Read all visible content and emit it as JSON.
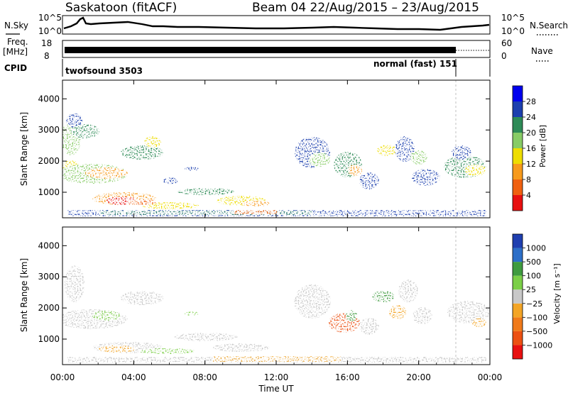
{
  "header": {
    "station": "Saskatoon (fitACF)",
    "beam_date": "Beam 04 22/Aug/2015 – 23/Aug/2015"
  },
  "strips": {
    "nsky_label": "N.Sky",
    "nsky_ticks": [
      "10^5",
      "10^0"
    ],
    "nsky_right_ticks": [
      "10^5",
      "10^0"
    ],
    "nsearch_label": "N.Search",
    "freq_label": "Freq.",
    "freq_unit": "[MHz]",
    "freq_ticks": [
      "18",
      "8"
    ],
    "nave_label": "Nave",
    "nave_ticks": [
      "60",
      "0"
    ],
    "cpid_label": "CPID",
    "cpid_modes": [
      "twofsound 3503",
      "normal (fast) 151"
    ]
  },
  "chart_data": [
    {
      "type": "heatmap",
      "name": "power-panel",
      "ylabel": "Slant Range [km]",
      "ylim": [
        180,
        4600
      ],
      "y_ticks": [
        1000,
        2000,
        3000,
        4000
      ],
      "y_tick_labels": [
        "1000",
        "2000",
        "3000",
        "4000"
      ],
      "colorbar_label": "Power [dB]",
      "colorbar_ticks": [
        "28",
        "24",
        "20",
        "16",
        "12",
        "8",
        "4"
      ],
      "colorbar_colors": [
        "#0000ee",
        "#1c3fae",
        "#2e8b57",
        "#88cc66",
        "#eedd00",
        "#f79a1c",
        "#f06010",
        "#e81010"
      ]
    },
    {
      "type": "heatmap",
      "name": "velocity-panel",
      "ylabel": "Slant Range [km]",
      "ylim": [
        180,
        4600
      ],
      "y_ticks": [
        1000,
        2000,
        3000,
        4000
      ],
      "y_tick_labels": [
        "1000",
        "2000",
        "3000",
        "4000"
      ],
      "xlabel": "Time UT",
      "x_tick_labels": [
        "00:00",
        "04:00",
        "08:00",
        "12:00",
        "16:00",
        "20:00",
        "00:00"
      ],
      "colorbar_label": "Velocity [m s⁻¹]",
      "colorbar_ticks": [
        "1000",
        "500",
        "100",
        "25",
        "−25",
        "−100",
        "−500",
        "−1000"
      ],
      "colorbar_colors": [
        "#1f3fb0",
        "#2d6fc8",
        "#3f9b3f",
        "#7bcf47",
        "#c8c8c8",
        "#f3a526",
        "#f07a1a",
        "#ec5012",
        "#e81010"
      ]
    }
  ]
}
